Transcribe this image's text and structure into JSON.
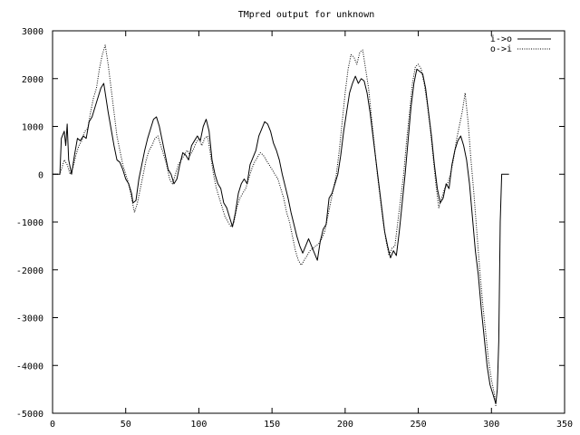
{
  "chart_data": {
    "type": "line",
    "title": "TMpred output for unknown",
    "xlabel": "",
    "ylabel": "",
    "xlim": [
      0,
      350
    ],
    "ylim": [
      -5000,
      3000
    ],
    "x_ticks": [
      0,
      50,
      100,
      150,
      200,
      250,
      300,
      350
    ],
    "y_ticks": [
      3000,
      2000,
      1000,
      0,
      -1000,
      -2000,
      -3000,
      -4000,
      -5000
    ],
    "x_tick_labels": [
      "0",
      "50",
      "100",
      "150",
      "200",
      "250",
      "300",
      "350"
    ],
    "y_tick_labels": [
      "3000",
      "2000",
      "1000",
      "0",
      "-1000",
      "-2000",
      "-3000",
      "-4000",
      "-5000"
    ],
    "grid": false,
    "legend_position": "top-right",
    "series": [
      {
        "name": "i->o",
        "style": "solid",
        "color": "#000000",
        "points": [
          [
            0,
            0
          ],
          [
            5,
            0
          ],
          [
            6,
            750
          ],
          [
            8,
            900
          ],
          [
            9,
            600
          ],
          [
            10,
            1050
          ],
          [
            11,
            300
          ],
          [
            13,
            0
          ],
          [
            15,
            400
          ],
          [
            17,
            750
          ],
          [
            19,
            700
          ],
          [
            21,
            800
          ],
          [
            23,
            750
          ],
          [
            25,
            1100
          ],
          [
            27,
            1200
          ],
          [
            29,
            1400
          ],
          [
            31,
            1600
          ],
          [
            33,
            1800
          ],
          [
            35,
            1900
          ],
          [
            36,
            1700
          ],
          [
            38,
            1300
          ],
          [
            40,
            950
          ],
          [
            42,
            600
          ],
          [
            44,
            300
          ],
          [
            46,
            250
          ],
          [
            48,
            100
          ],
          [
            50,
            -100
          ],
          [
            52,
            -200
          ],
          [
            54,
            -400
          ],
          [
            55,
            -600
          ],
          [
            57,
            -550
          ],
          [
            59,
            -100
          ],
          [
            61,
            200
          ],
          [
            63,
            500
          ],
          [
            65,
            750
          ],
          [
            67,
            950
          ],
          [
            69,
            1150
          ],
          [
            71,
            1200
          ],
          [
            73,
            1000
          ],
          [
            75,
            700
          ],
          [
            77,
            400
          ],
          [
            79,
            100
          ],
          [
            81,
            0
          ],
          [
            83,
            -200
          ],
          [
            85,
            -100
          ],
          [
            87,
            200
          ],
          [
            89,
            450
          ],
          [
            91,
            400
          ],
          [
            93,
            300
          ],
          [
            95,
            600
          ],
          [
            97,
            700
          ],
          [
            99,
            800
          ],
          [
            101,
            700
          ],
          [
            103,
            1000
          ],
          [
            105,
            1150
          ],
          [
            107,
            900
          ],
          [
            109,
            300
          ],
          [
            111,
            0
          ],
          [
            113,
            -200
          ],
          [
            115,
            -300
          ],
          [
            117,
            -600
          ],
          [
            119,
            -700
          ],
          [
            121,
            -900
          ],
          [
            123,
            -1100
          ],
          [
            125,
            -800
          ],
          [
            127,
            -400
          ],
          [
            129,
            -200
          ],
          [
            131,
            -100
          ],
          [
            133,
            -200
          ],
          [
            135,
            200
          ],
          [
            137,
            350
          ],
          [
            139,
            500
          ],
          [
            141,
            800
          ],
          [
            143,
            950
          ],
          [
            145,
            1100
          ],
          [
            147,
            1050
          ],
          [
            149,
            900
          ],
          [
            151,
            650
          ],
          [
            153,
            500
          ],
          [
            155,
            300
          ],
          [
            157,
            0
          ],
          [
            159,
            -250
          ],
          [
            161,
            -500
          ],
          [
            163,
            -800
          ],
          [
            165,
            -1050
          ],
          [
            167,
            -1300
          ],
          [
            169,
            -1500
          ],
          [
            171,
            -1650
          ],
          [
            173,
            -1500
          ],
          [
            175,
            -1350
          ],
          [
            177,
            -1500
          ],
          [
            179,
            -1650
          ],
          [
            181,
            -1800
          ],
          [
            183,
            -1400
          ],
          [
            185,
            -1150
          ],
          [
            187,
            -1050
          ],
          [
            189,
            -500
          ],
          [
            191,
            -400
          ],
          [
            193,
            -200
          ],
          [
            195,
            0
          ],
          [
            197,
            400
          ],
          [
            199,
            900
          ],
          [
            201,
            1300
          ],
          [
            203,
            1700
          ],
          [
            205,
            1900
          ],
          [
            207,
            2050
          ],
          [
            209,
            1900
          ],
          [
            211,
            2000
          ],
          [
            213,
            1950
          ],
          [
            215,
            1700
          ],
          [
            217,
            1300
          ],
          [
            219,
            800
          ],
          [
            221,
            300
          ],
          [
            223,
            -200
          ],
          [
            225,
            -700
          ],
          [
            227,
            -1200
          ],
          [
            229,
            -1500
          ],
          [
            231,
            -1750
          ],
          [
            233,
            -1600
          ],
          [
            235,
            -1700
          ],
          [
            237,
            -1200
          ],
          [
            239,
            -600
          ],
          [
            241,
            0
          ],
          [
            243,
            700
          ],
          [
            245,
            1400
          ],
          [
            247,
            1900
          ],
          [
            249,
            2200
          ],
          [
            251,
            2150
          ],
          [
            253,
            2100
          ],
          [
            255,
            1800
          ],
          [
            257,
            1300
          ],
          [
            259,
            800
          ],
          [
            261,
            200
          ],
          [
            263,
            -300
          ],
          [
            265,
            -600
          ],
          [
            267,
            -500
          ],
          [
            269,
            -200
          ],
          [
            271,
            -300
          ],
          [
            273,
            200
          ],
          [
            275,
            500
          ],
          [
            277,
            700
          ],
          [
            279,
            800
          ],
          [
            281,
            600
          ],
          [
            283,
            300
          ],
          [
            285,
            -200
          ],
          [
            287,
            -900
          ],
          [
            289,
            -1600
          ],
          [
            291,
            -2100
          ],
          [
            293,
            -2800
          ],
          [
            295,
            -3400
          ],
          [
            297,
            -4000
          ],
          [
            299,
            -4400
          ],
          [
            301,
            -4600
          ],
          [
            303,
            -4800
          ],
          [
            304,
            -4500
          ],
          [
            305,
            -3500
          ],
          [
            306,
            -1000
          ],
          [
            307,
            0
          ],
          [
            312,
            0
          ]
        ]
      },
      {
        "name": "o->i",
        "style": "dotted",
        "color": "#000000",
        "points": [
          [
            0,
            0
          ],
          [
            5,
            0
          ],
          [
            6,
            100
          ],
          [
            8,
            300
          ],
          [
            10,
            200
          ],
          [
            12,
            0
          ],
          [
            14,
            150
          ],
          [
            16,
            400
          ],
          [
            18,
            600
          ],
          [
            20,
            700
          ],
          [
            22,
            900
          ],
          [
            24,
            950
          ],
          [
            26,
            1300
          ],
          [
            28,
            1600
          ],
          [
            30,
            1800
          ],
          [
            32,
            2200
          ],
          [
            34,
            2500
          ],
          [
            36,
            2700
          ],
          [
            38,
            2300
          ],
          [
            40,
            1800
          ],
          [
            42,
            1300
          ],
          [
            44,
            800
          ],
          [
            46,
            500
          ],
          [
            48,
            200
          ],
          [
            50,
            0
          ],
          [
            52,
            -200
          ],
          [
            54,
            -500
          ],
          [
            56,
            -800
          ],
          [
            58,
            -600
          ],
          [
            60,
            -300
          ],
          [
            62,
            0
          ],
          [
            64,
            300
          ],
          [
            66,
            500
          ],
          [
            68,
            600
          ],
          [
            70,
            750
          ],
          [
            72,
            800
          ],
          [
            74,
            600
          ],
          [
            76,
            400
          ],
          [
            78,
            200
          ],
          [
            80,
            -100
          ],
          [
            82,
            -200
          ],
          [
            84,
            0
          ],
          [
            86,
            200
          ],
          [
            88,
            300
          ],
          [
            90,
            400
          ],
          [
            92,
            500
          ],
          [
            94,
            400
          ],
          [
            96,
            500
          ],
          [
            98,
            650
          ],
          [
            100,
            750
          ],
          [
            102,
            600
          ],
          [
            104,
            750
          ],
          [
            106,
            800
          ],
          [
            108,
            400
          ],
          [
            110,
            0
          ],
          [
            112,
            -300
          ],
          [
            114,
            -500
          ],
          [
            116,
            -700
          ],
          [
            118,
            -900
          ],
          [
            120,
            -1000
          ],
          [
            122,
            -1100
          ],
          [
            124,
            -1000
          ],
          [
            126,
            -700
          ],
          [
            128,
            -500
          ],
          [
            130,
            -400
          ],
          [
            132,
            -300
          ],
          [
            134,
            -100
          ],
          [
            136,
            100
          ],
          [
            138,
            250
          ],
          [
            140,
            350
          ],
          [
            142,
            450
          ],
          [
            144,
            400
          ],
          [
            146,
            300
          ],
          [
            148,
            200
          ],
          [
            150,
            100
          ],
          [
            152,
            0
          ],
          [
            154,
            -100
          ],
          [
            156,
            -300
          ],
          [
            158,
            -500
          ],
          [
            160,
            -800
          ],
          [
            162,
            -1000
          ],
          [
            164,
            -1300
          ],
          [
            166,
            -1600
          ],
          [
            168,
            -1800
          ],
          [
            170,
            -1900
          ],
          [
            172,
            -1800
          ],
          [
            174,
            -1700
          ],
          [
            176,
            -1600
          ],
          [
            178,
            -1550
          ],
          [
            180,
            -1500
          ],
          [
            182,
            -1450
          ],
          [
            184,
            -1350
          ],
          [
            186,
            -1200
          ],
          [
            188,
            -900
          ],
          [
            190,
            -600
          ],
          [
            192,
            -300
          ],
          [
            194,
            0
          ],
          [
            196,
            500
          ],
          [
            198,
            1100
          ],
          [
            200,
            1700
          ],
          [
            202,
            2200
          ],
          [
            204,
            2500
          ],
          [
            206,
            2450
          ],
          [
            208,
            2300
          ],
          [
            210,
            2550
          ],
          [
            212,
            2600
          ],
          [
            214,
            2200
          ],
          [
            216,
            1800
          ],
          [
            218,
            1200
          ],
          [
            220,
            600
          ],
          [
            222,
            0
          ],
          [
            224,
            -500
          ],
          [
            226,
            -1000
          ],
          [
            228,
            -1400
          ],
          [
            230,
            -1700
          ],
          [
            232,
            -1550
          ],
          [
            234,
            -1500
          ],
          [
            236,
            -1000
          ],
          [
            238,
            -500
          ],
          [
            240,
            0
          ],
          [
            242,
            700
          ],
          [
            244,
            1300
          ],
          [
            246,
            1900
          ],
          [
            248,
            2250
          ],
          [
            250,
            2300
          ],
          [
            252,
            2200
          ],
          [
            254,
            1900
          ],
          [
            256,
            1500
          ],
          [
            258,
            1000
          ],
          [
            260,
            400
          ],
          [
            262,
            -200
          ],
          [
            264,
            -700
          ],
          [
            266,
            -500
          ],
          [
            268,
            -300
          ],
          [
            270,
            -200
          ],
          [
            272,
            0
          ],
          [
            274,
            300
          ],
          [
            276,
            700
          ],
          [
            278,
            1000
          ],
          [
            280,
            1300
          ],
          [
            282,
            1700
          ],
          [
            284,
            1100
          ],
          [
            286,
            300
          ],
          [
            288,
            -400
          ],
          [
            290,
            -1200
          ],
          [
            292,
            -2000
          ],
          [
            294,
            -2700
          ],
          [
            296,
            -3300
          ],
          [
            298,
            -3900
          ],
          [
            300,
            -4300
          ],
          [
            302,
            -4600
          ],
          [
            303,
            -4850
          ]
        ]
      }
    ]
  }
}
